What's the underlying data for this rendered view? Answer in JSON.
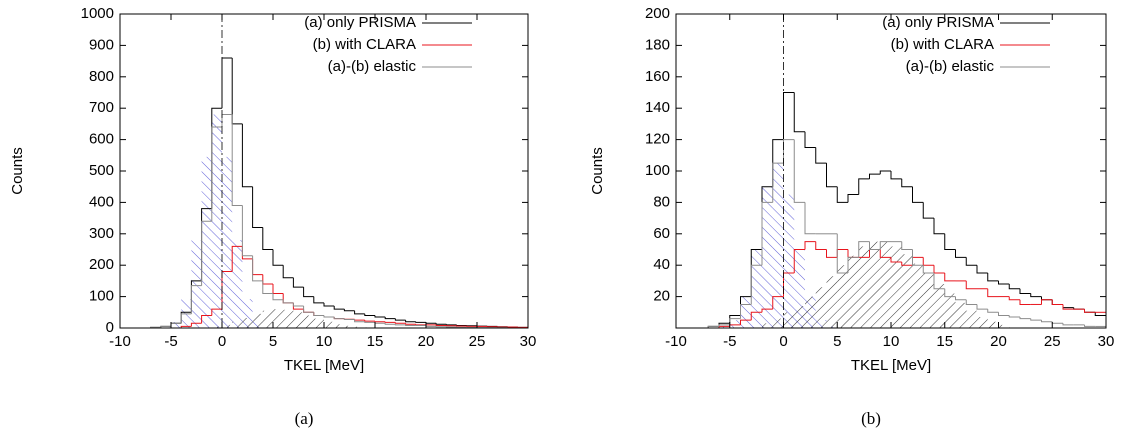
{
  "chart_data": [
    {
      "type": "histogram",
      "caption": "(a)",
      "xlabel": "TKEL [MeV]",
      "ylabel": "Counts",
      "xlim": [
        -10,
        30
      ],
      "xticks": [
        -10,
        -5,
        0,
        5,
        10,
        15,
        20,
        25,
        30
      ],
      "ylim": [
        0,
        1000
      ],
      "yticks": [
        0,
        100,
        200,
        300,
        400,
        500,
        600,
        700,
        800,
        900,
        1000
      ],
      "vline": 0,
      "legend": "upper right",
      "bins": [
        -10,
        -9,
        -8,
        -7,
        -6,
        -5,
        -4,
        -3,
        -2,
        -1,
        0,
        1,
        2,
        3,
        4,
        5,
        6,
        7,
        8,
        9,
        10,
        11,
        12,
        13,
        14,
        15,
        16,
        17,
        18,
        19,
        20,
        21,
        22,
        23,
        24,
        25,
        26,
        27,
        28,
        29,
        30
      ],
      "series": [
        {
          "name": "(a) only PRISMA",
          "color": "#000000",
          "values": [
            0,
            0,
            0,
            2,
            5,
            15,
            50,
            150,
            380,
            700,
            860,
            650,
            450,
            320,
            250,
            200,
            160,
            130,
            100,
            80,
            70,
            60,
            55,
            45,
            40,
            35,
            30,
            25,
            20,
            18,
            15,
            12,
            10,
            8,
            7,
            6,
            5,
            4,
            3,
            2
          ]
        },
        {
          "name": "(b) with CLARA",
          "color": "#e8141c",
          "values": [
            0,
            0,
            0,
            0,
            0,
            0,
            5,
            15,
            40,
            60,
            180,
            260,
            220,
            170,
            140,
            110,
            80,
            60,
            50,
            40,
            35,
            30,
            28,
            25,
            22,
            20,
            18,
            15,
            12,
            10,
            10,
            8,
            7,
            6,
            5,
            5,
            4,
            3,
            3,
            2
          ]
        },
        {
          "name": "(a)-(b) elastic",
          "color": "#8c8c8c",
          "values": [
            0,
            0,
            0,
            2,
            5,
            15,
            45,
            135,
            340,
            640,
            680,
            390,
            230,
            150,
            110,
            90,
            80,
            70,
            50,
            40,
            35,
            30,
            27,
            20,
            18,
            15,
            12,
            10,
            8,
            8,
            5,
            4,
            3,
            2,
            2,
            1,
            1,
            1,
            0,
            0
          ]
        },
        {
          "color": "#3a3ad0",
          "style": "hatched",
          "hatch_angle": -45,
          "values": [
            0,
            0,
            0,
            0,
            2,
            19,
            92,
            280,
            545,
            680,
            545,
            280,
            92,
            19,
            2,
            0,
            0,
            0,
            0,
            0,
            0,
            0,
            0,
            0,
            0,
            0,
            0,
            0,
            0,
            0,
            0,
            0,
            0,
            0,
            0,
            0,
            0,
            0,
            0,
            0
          ]
        },
        {
          "color": "#000000",
          "style": "hatched",
          "hatch_angle": 45,
          "values": [
            0,
            0,
            0,
            0,
            0,
            0,
            0,
            0,
            0,
            5,
            10,
            20,
            32,
            45,
            55,
            60,
            58,
            50,
            40,
            30,
            20,
            12,
            7,
            4,
            2,
            0,
            0,
            0,
            0,
            0,
            0,
            0,
            0,
            0,
            0,
            0,
            0,
            0,
            0,
            0
          ]
        }
      ]
    },
    {
      "type": "histogram",
      "caption": "(b)",
      "xlabel": "TKEL [MeV]",
      "ylabel": "Counts",
      "xlim": [
        -10,
        30
      ],
      "xticks": [
        -10,
        -5,
        0,
        5,
        10,
        15,
        20,
        25,
        30
      ],
      "ylim": [
        0,
        200
      ],
      "yticks": [
        20,
        40,
        60,
        80,
        100,
        120,
        140,
        160,
        180,
        200
      ],
      "vline": 0,
      "legend": "upper right",
      "bins": [
        -10,
        -9,
        -8,
        -7,
        -6,
        -5,
        -4,
        -3,
        -2,
        -1,
        0,
        1,
        2,
        3,
        4,
        5,
        6,
        7,
        8,
        9,
        10,
        11,
        12,
        13,
        14,
        15,
        16,
        17,
        18,
        19,
        20,
        21,
        22,
        23,
        24,
        25,
        26,
        27,
        28,
        29,
        30
      ],
      "series": [
        {
          "name": "(a) only PRISMA",
          "color": "#000000",
          "values": [
            0,
            0,
            0,
            1,
            3,
            8,
            20,
            50,
            90,
            120,
            150,
            125,
            115,
            105,
            90,
            80,
            85,
            95,
            98,
            100,
            95,
            90,
            80,
            70,
            60,
            50,
            45,
            40,
            35,
            30,
            28,
            25,
            22,
            20,
            18,
            15,
            13,
            12,
            10,
            8
          ]
        },
        {
          "name": "(b) with CLARA",
          "color": "#e8141c",
          "values": [
            0,
            0,
            0,
            0,
            1,
            2,
            5,
            10,
            12,
            20,
            35,
            50,
            55,
            50,
            45,
            50,
            45,
            45,
            50,
            45,
            42,
            40,
            45,
            40,
            35,
            30,
            30,
            25,
            25,
            20,
            20,
            18,
            15,
            15,
            18,
            15,
            12,
            12,
            10,
            10
          ]
        },
        {
          "name": "(a)-(b) elastic",
          "color": "#8c8c8c",
          "values": [
            0,
            0,
            0,
            1,
            2,
            6,
            15,
            40,
            80,
            105,
            120,
            80,
            60,
            60,
            60,
            35,
            45,
            55,
            50,
            55,
            55,
            50,
            40,
            35,
            25,
            20,
            18,
            15,
            12,
            10,
            8,
            7,
            6,
            5,
            4,
            3,
            2,
            2,
            1,
            1
          ]
        },
        {
          "color": "#3a3ad0",
          "style": "hatched",
          "hatch_angle": -45,
          "values": [
            0,
            0,
            0,
            0,
            1,
            5,
            20,
            50,
            90,
            105,
            85,
            50,
            20,
            5,
            1,
            0,
            0,
            0,
            0,
            0,
            0,
            0,
            0,
            0,
            0,
            0,
            0,
            0,
            0,
            0,
            0,
            0,
            0,
            0,
            0,
            0,
            0,
            0,
            0,
            0
          ]
        },
        {
          "color": "#000000",
          "style": "hatched",
          "hatch_angle": 45,
          "values": [
            0,
            0,
            0,
            0,
            0,
            0,
            0,
            0,
            3,
            6,
            10,
            14,
            20,
            26,
            33,
            40,
            46,
            52,
            55,
            55,
            52,
            47,
            41,
            35,
            28,
            22,
            16,
            11,
            7,
            4,
            2,
            0,
            0,
            0,
            0,
            0,
            0,
            0,
            0,
            0
          ]
        }
      ]
    }
  ]
}
